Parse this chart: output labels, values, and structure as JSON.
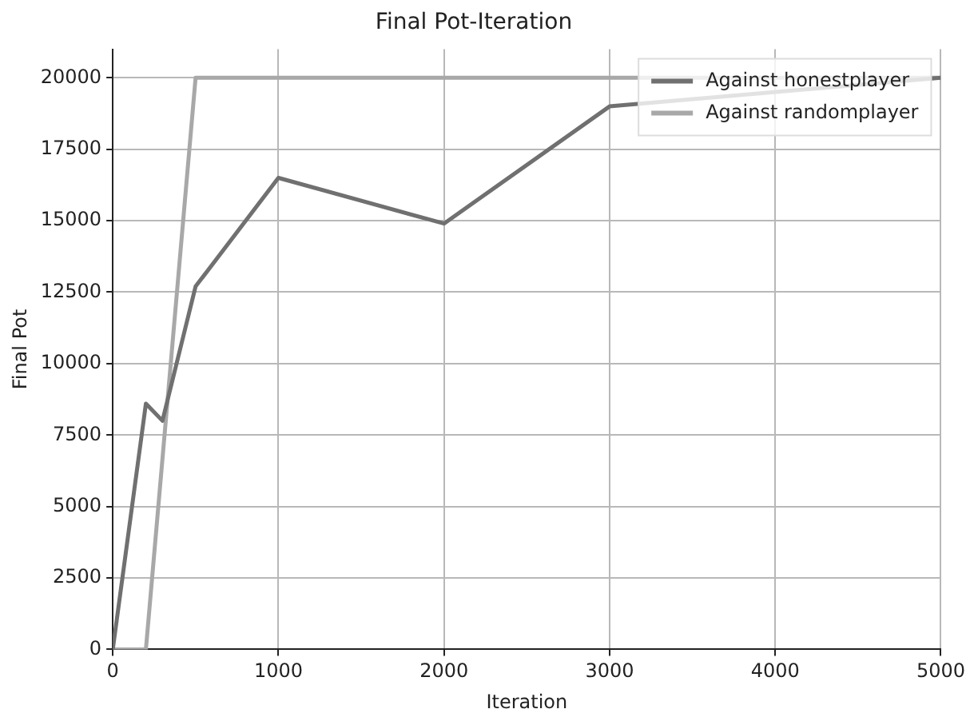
{
  "chart_data": {
    "type": "line",
    "title": "Final Pot-Iteration",
    "xlabel": "Iteration",
    "ylabel": "Final Pot",
    "xlim": [
      0,
      5000
    ],
    "xticks": [
      0,
      1000,
      2000,
      3000,
      4000,
      5000
    ],
    "ylim": [
      0,
      21000
    ],
    "yticks": [
      0,
      2500,
      5000,
      7500,
      10000,
      12500,
      15000,
      17500,
      20000
    ],
    "grid": true,
    "legend": "top right",
    "marker": "none",
    "line_style": "solid",
    "series": [
      {
        "name": "Against honestplayer",
        "color": "#707070",
        "x": [
          0,
          200,
          300,
          500,
          1000,
          2000,
          3000,
          5000
        ],
        "values": [
          0,
          8600,
          8000,
          12700,
          16500,
          14900,
          19000,
          20000
        ]
      },
      {
        "name": "Against randomplayer",
        "color": "#a8a8a8",
        "x": [
          0,
          200,
          500,
          1000,
          2000,
          3000,
          5000
        ],
        "values": [
          0,
          0,
          20000,
          20000,
          20000,
          20000,
          20000
        ]
      }
    ]
  }
}
